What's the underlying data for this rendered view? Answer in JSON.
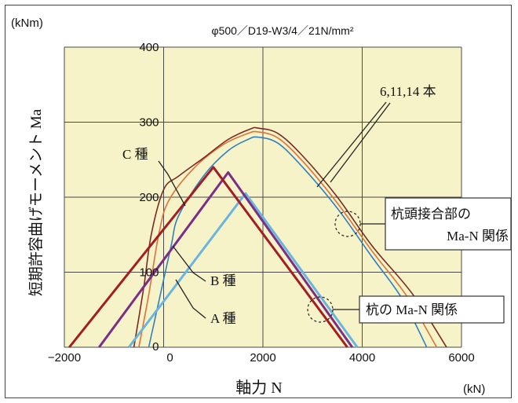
{
  "chart_data": {
    "type": "line",
    "title": "φ500／D19-W3/4／21N/mm²",
    "y_unit": "(kNm)",
    "x_unit": "(kN)",
    "xlabel": "軸力 N",
    "ylabel": "短期許容曲げモーメント Ma",
    "xlim": [
      -2000,
      6000
    ],
    "ylim": [
      0,
      400
    ],
    "x_ticks": [
      "−2000",
      "0",
      "2000",
      "4000",
      "6000"
    ],
    "y_ticks": [
      "0",
      "100",
      "200",
      "300",
      "400"
    ],
    "grid": true,
    "colors": {
      "plot_bg": "#f6f3c8",
      "pile_head_6": "#2f7fc1",
      "pile_head_11": "#e0703a",
      "pile_head_14": "#7a2a22",
      "pile_A": "#6ab4e0",
      "pile_B": "#7a2e86",
      "pile_C": "#a31d22"
    },
    "series": [
      {
        "key": "pile_head_6",
        "group": "杭頭接合部",
        "values": [
          [
            -300,
            0
          ],
          [
            -100,
            60
          ],
          [
            150,
            135
          ],
          [
            300,
            175
          ],
          [
            800,
            228
          ],
          [
            1300,
            262
          ],
          [
            1700,
            277
          ],
          [
            1900,
            280
          ],
          [
            2300,
            272
          ],
          [
            2800,
            240
          ],
          [
            3500,
            185
          ],
          [
            4200,
            120
          ],
          [
            4800,
            65
          ],
          [
            5300,
            0
          ]
        ]
      },
      {
        "key": "pile_head_11",
        "group": "杭頭接合部",
        "values": [
          [
            -500,
            0
          ],
          [
            -300,
            70
          ],
          [
            -100,
            150
          ],
          [
            100,
            195
          ],
          [
            600,
            238
          ],
          [
            1200,
            270
          ],
          [
            1700,
            285
          ],
          [
            1900,
            287
          ],
          [
            2300,
            279
          ],
          [
            2800,
            248
          ],
          [
            3500,
            192
          ],
          [
            4200,
            128
          ],
          [
            4900,
            68
          ],
          [
            5500,
            0
          ]
        ]
      },
      {
        "key": "pile_head_14",
        "group": "杭頭接合部",
        "values": [
          [
            -600,
            0
          ],
          [
            -400,
            80
          ],
          [
            -250,
            150
          ],
          [
            0,
            210
          ],
          [
            300,
            228
          ],
          [
            800,
            252
          ],
          [
            1300,
            277
          ],
          [
            1750,
            291
          ],
          [
            1900,
            292
          ],
          [
            2300,
            285
          ],
          [
            2800,
            255
          ],
          [
            3500,
            200
          ],
          [
            4200,
            135
          ],
          [
            5000,
            72
          ],
          [
            5700,
            0
          ]
        ]
      },
      {
        "key": "pile_A",
        "group": "杭",
        "label": "A 種",
        "values": [
          [
            -700,
            0
          ],
          [
            1650,
            205
          ],
          [
            3900,
            0
          ]
        ]
      },
      {
        "key": "pile_B",
        "group": "杭",
        "label": "B 種",
        "values": [
          [
            -1300,
            0
          ],
          [
            1300,
            233
          ],
          [
            3800,
            0
          ]
        ]
      },
      {
        "key": "pile_C",
        "group": "杭",
        "label": "C 種",
        "values": [
          [
            -1900,
            0
          ],
          [
            1000,
            240
          ],
          [
            3700,
            0
          ]
        ]
      }
    ],
    "annotations": {
      "counts": "6,11,14 本",
      "c_label": "C 種",
      "b_label": "B 種",
      "a_label": "A 種",
      "box_head_line1": "杭頭接合部の",
      "box_head_line2": "Ma-N 関係",
      "box_pile": "杭の Ma-N 関係"
    }
  }
}
